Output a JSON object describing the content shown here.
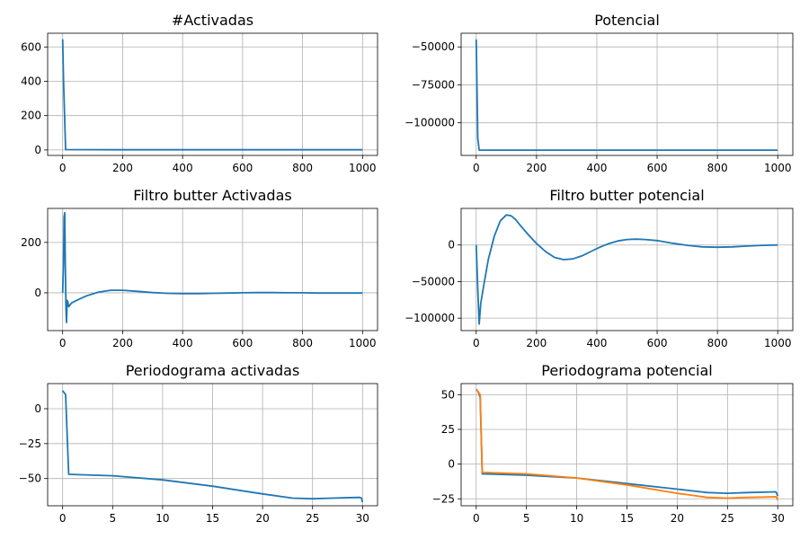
{
  "chart_data": [
    {
      "type": "line",
      "title": "#Activadas",
      "xlim": [
        -50,
        1050
      ],
      "ylim": [
        -32,
        680
      ],
      "xticks": [
        0,
        200,
        400,
        600,
        800,
        1000
      ],
      "yticks": [
        0,
        200,
        400,
        600
      ],
      "ytick_labels": [
        "0",
        "200",
        "400",
        "600"
      ],
      "grid": true,
      "series": [
        {
          "color": "#1f77b4",
          "x": [
            0,
            3,
            10,
            200,
            400,
            600,
            800,
            1000
          ],
          "y": [
            645,
            400,
            2,
            1,
            1,
            1,
            1,
            1
          ]
        }
      ]
    },
    {
      "type": "line",
      "title": "Potencial",
      "xlim": [
        -50,
        1050
      ],
      "ylim": [
        -121500,
        -41000
      ],
      "xticks": [
        0,
        200,
        400,
        600,
        800,
        1000
      ],
      "yticks": [
        -50000,
        -75000,
        -100000
      ],
      "ytick_labels": [
        "−50000",
        "−75000",
        "−100000"
      ],
      "grid": true,
      "series": [
        {
          "color": "#1f77b4",
          "x": [
            0,
            5,
            10,
            200,
            400,
            600,
            800,
            1000
          ],
          "y": [
            -45000,
            -110000,
            -118000,
            -118000,
            -118000,
            -118000,
            -118000,
            -118000
          ]
        }
      ]
    },
    {
      "type": "line",
      "title": "Filtro butter Activadas",
      "xlim": [
        -50,
        1050
      ],
      "ylim": [
        -150,
        335
      ],
      "xticks": [
        0,
        200,
        400,
        600,
        800,
        1000
      ],
      "yticks": [
        0,
        200
      ],
      "ytick_labels": [
        "0",
        "200"
      ],
      "grid": true,
      "series": [
        {
          "color": "#1f77b4",
          "x": [
            0,
            3,
            5,
            7,
            9,
            11,
            13,
            15,
            17,
            20,
            30,
            50,
            80,
            120,
            160,
            200,
            250,
            300,
            350,
            400,
            450,
            500,
            550,
            600,
            650,
            700,
            750,
            800,
            850,
            900,
            950,
            1000
          ],
          "y": [
            0,
            120,
            300,
            318,
            100,
            -60,
            -118,
            -30,
            -35,
            -55,
            -40,
            -28,
            -12,
            3,
            10,
            10,
            6,
            1,
            -2,
            -3,
            -3,
            -2,
            -1,
            0,
            1,
            1,
            0,
            0,
            -1,
            -1,
            -1,
            -1
          ]
        }
      ]
    },
    {
      "type": "line",
      "title": "Filtro butter potencial",
      "xlim": [
        -50,
        1050
      ],
      "ylim": [
        -117000,
        50000
      ],
      "xticks": [
        0,
        200,
        400,
        600,
        800,
        1000
      ],
      "yticks": [
        0,
        -50000,
        -100000
      ],
      "ytick_labels": [
        "0",
        "−50000",
        "−100000"
      ],
      "grid": true,
      "series": [
        {
          "color": "#1f77b4",
          "x": [
            0,
            5,
            10,
            15,
            25,
            40,
            60,
            80,
            100,
            115,
            130,
            150,
            175,
            200,
            230,
            260,
            290,
            320,
            350,
            380,
            410,
            440,
            470,
            500,
            530,
            560,
            600,
            650,
            700,
            750,
            800,
            850,
            900,
            950,
            1000
          ],
          "y": [
            0,
            -60000,
            -108000,
            -80000,
            -55000,
            -20000,
            12000,
            33000,
            41000,
            40000,
            35000,
            25000,
            13000,
            2000,
            -9000,
            -17000,
            -20000,
            -19000,
            -15000,
            -9000,
            -3000,
            2000,
            5500,
            7500,
            8000,
            7500,
            6000,
            2500,
            -500,
            -2500,
            -3000,
            -2500,
            -1500,
            -500,
            0
          ]
        }
      ]
    },
    {
      "type": "line",
      "title": "Periodograma activadas",
      "xlim": [
        -1.5,
        31.5
      ],
      "ylim": [
        -69.5,
        18
      ],
      "xticks": [
        0,
        5,
        10,
        15,
        20,
        25,
        30
      ],
      "yticks": [
        0,
        -25,
        -50
      ],
      "ytick_labels": [
        "0",
        "−25",
        "−50"
      ],
      "grid": true,
      "series": [
        {
          "color": "#1f77b4",
          "x": [
            0,
            0.2,
            0.3,
            0.6,
            5,
            10,
            15,
            20,
            23,
            25,
            27,
            29.7,
            29.9,
            30
          ],
          "y": [
            13,
            11,
            10,
            -47,
            -48,
            -51,
            -55.5,
            -61,
            -64,
            -64.5,
            -64,
            -63.5,
            -64,
            -67
          ]
        }
      ]
    },
    {
      "type": "line",
      "title": "Periodograma potencial",
      "xlim": [
        -1.5,
        31.5
      ],
      "ylim": [
        -30,
        58
      ],
      "xticks": [
        0,
        5,
        10,
        15,
        20,
        25,
        30
      ],
      "yticks": [
        50,
        25,
        0,
        -25
      ],
      "ytick_labels": [
        "50",
        "25",
        "0",
        "−25"
      ],
      "grid": true,
      "series": [
        {
          "color": "#1f77b4",
          "x": [
            0,
            0.2,
            0.4,
            0.6,
            5,
            10,
            15,
            20,
            23,
            25,
            27,
            29.8,
            29.9,
            30
          ],
          "y": [
            54,
            52,
            48,
            -7,
            -8,
            -10,
            -14,
            -18,
            -20.5,
            -21,
            -20.5,
            -20,
            -21,
            -23
          ]
        },
        {
          "color": "#ff7f0e",
          "x": [
            0,
            0.2,
            0.4,
            0.6,
            5,
            10,
            15,
            20,
            23,
            25,
            27,
            29.8,
            29.9,
            30
          ],
          "y": [
            54,
            52,
            50,
            -6,
            -7,
            -10,
            -15,
            -21,
            -24,
            -24.5,
            -24,
            -23.5,
            -24,
            -26
          ]
        }
      ]
    }
  ]
}
